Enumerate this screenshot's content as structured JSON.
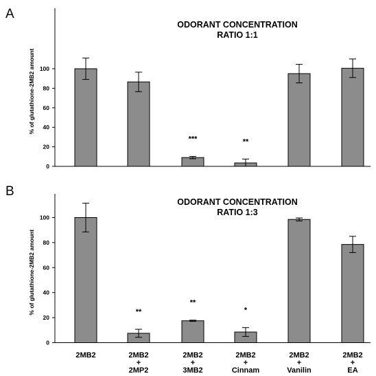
{
  "chart_data": [
    {
      "type": "bar",
      "panel": "A",
      "title": [
        "ODORANT CONCENTRATION",
        "RATIO 1:1"
      ],
      "ylabel": "% of glutathione-2MB2 amount",
      "ylim": [
        0,
        120
      ],
      "yticks": [
        0,
        20,
        40,
        60,
        80,
        100
      ],
      "categories": [
        [
          "2MB2"
        ],
        [
          "2MB2",
          "+",
          "2MP2"
        ],
        [
          "2MB2",
          "+",
          "3MB2"
        ],
        [
          "2MB2",
          "+",
          "Cinnam"
        ],
        [
          "2MB2",
          "+",
          "Vanilin"
        ],
        [
          "2MB2",
          "+",
          "EA"
        ]
      ],
      "values": [
        100,
        86.5,
        9,
        3.5,
        95,
        100.5
      ],
      "errors": [
        11,
        10,
        1.2,
        4,
        9.5,
        9.5
      ],
      "significance": [
        "",
        "",
        "***",
        "**",
        "",
        ""
      ],
      "bar_color": "#8c8c8c",
      "grid": false
    },
    {
      "type": "bar",
      "panel": "B",
      "title": [
        "ODORANT CONCENTRATION",
        "RATIO 1:3"
      ],
      "ylabel": "% of glutathione-2MB2 amount",
      "ylim": [
        0,
        120
      ],
      "yticks": [
        0,
        20,
        40,
        60,
        80,
        100
      ],
      "categories": [
        [
          "2MB2"
        ],
        [
          "2MB2",
          "+",
          "2MP2"
        ],
        [
          "2MB2",
          "+",
          "3MB2"
        ],
        [
          "2MB2",
          "+",
          "Cinnam"
        ],
        [
          "2MB2",
          "+",
          "Vanilin"
        ],
        [
          "2MB2",
          "+",
          "EA"
        ]
      ],
      "values": [
        100,
        7.5,
        17.5,
        8.5,
        98.5,
        78.5
      ],
      "errors": [
        11.5,
        3.2,
        0.5,
        3.5,
        1.2,
        6.5
      ],
      "significance": [
        "",
        "**",
        "**",
        "*",
        "",
        ""
      ],
      "bar_color": "#8c8c8c",
      "grid": false
    }
  ]
}
